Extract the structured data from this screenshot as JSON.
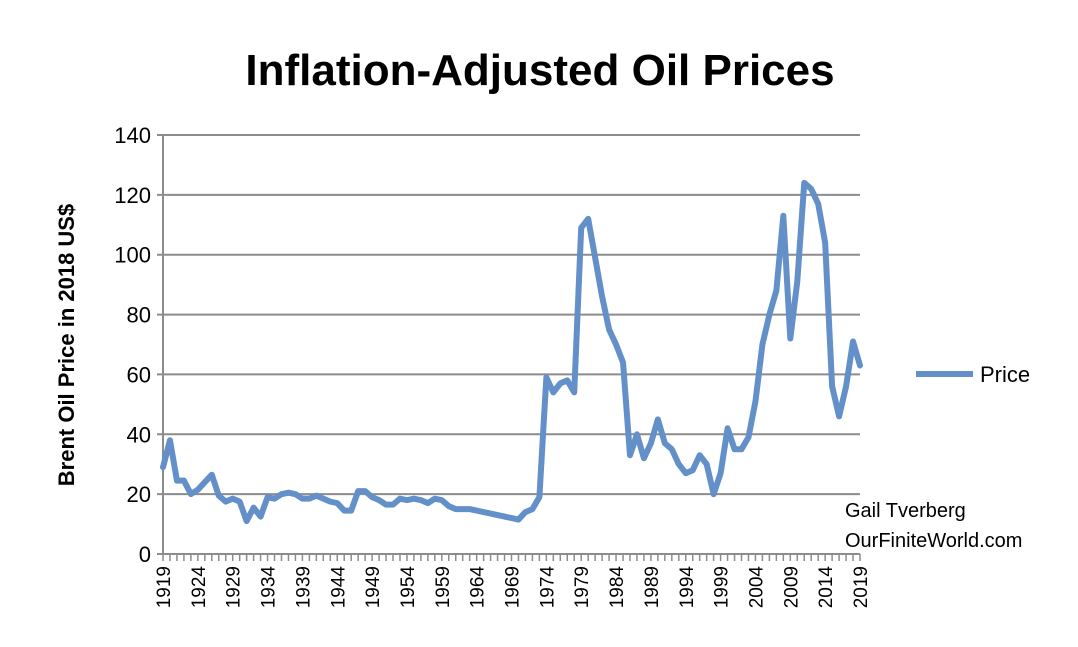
{
  "chart_data": {
    "type": "line",
    "title": "Inflation-Adjusted Oil Prices",
    "xlabel": "",
    "ylabel": "Brent Oil Price in 2018 US$",
    "ylim": [
      0,
      140
    ],
    "yticks": [
      0,
      20,
      40,
      60,
      80,
      100,
      120,
      140
    ],
    "xlim": [
      1919,
      2019
    ],
    "xtick_labels": [
      "1919",
      "1924",
      "1929",
      "1934",
      "1939",
      "1944",
      "1949",
      "1954",
      "1959",
      "1964",
      "1969",
      "1974",
      "1979",
      "1984",
      "1989",
      "1994",
      "1999",
      "2004",
      "2009",
      "2014",
      "2019"
    ],
    "grid": true,
    "legend_position": "right",
    "annotation": [
      "Gail Tverberg",
      "OurFiniteWorld.com"
    ],
    "series": [
      {
        "name": "Price",
        "color": "#6390C8",
        "x_start": 1919,
        "values": [
          29,
          38,
          24.5,
          24.5,
          20,
          21.5,
          24,
          26.5,
          19.5,
          17.5,
          18.5,
          17.5,
          11,
          15.5,
          12.5,
          19,
          18.5,
          20,
          20.5,
          20,
          18.5,
          18.5,
          19.5,
          18.5,
          17.5,
          17,
          14.5,
          14.5,
          21,
          21,
          19,
          18,
          16.5,
          16.5,
          18.5,
          18,
          18.5,
          18,
          17,
          18.5,
          18,
          16,
          15,
          15,
          15,
          14.5,
          14,
          13.5,
          13,
          12.5,
          12,
          11.5,
          14,
          15,
          19,
          59,
          54,
          57,
          58,
          54,
          109,
          112,
          99,
          86,
          75,
          70,
          64,
          33,
          40,
          32,
          37,
          45,
          37,
          35,
          30,
          27,
          28,
          33,
          30,
          20,
          27,
          42,
          35,
          35,
          39,
          51,
          70,
          80,
          88,
          113,
          72,
          91,
          124,
          122,
          117,
          104,
          56,
          46,
          56,
          71,
          63
        ]
      }
    ]
  }
}
